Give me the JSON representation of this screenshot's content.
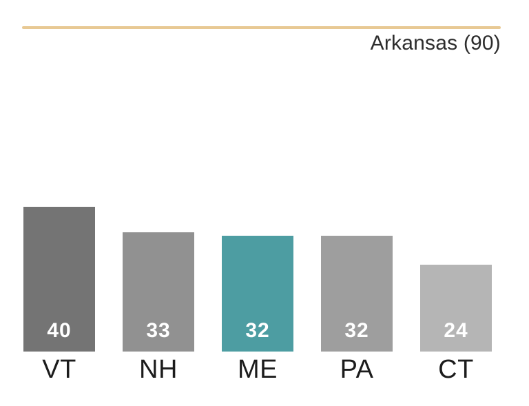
{
  "header": {
    "title": "Arkansas (90)"
  },
  "chart_data": {
    "type": "bar",
    "title": "Arkansas (90)",
    "categories": [
      "VT",
      "NH",
      "ME",
      "PA",
      "CT"
    ],
    "values": [
      40,
      33,
      32,
      32,
      24
    ],
    "bar_colors": [
      "#747474",
      "#919191",
      "#4d9da2",
      "#9e9e9e",
      "#b5b5b5"
    ],
    "highlight_index": 2,
    "highlight_color": "#4d9da2",
    "value_label_color": "#ffffff",
    "accent_rule_color": "#e8c994",
    "xlabel": "",
    "ylabel": "",
    "ylim": [
      0,
      40
    ],
    "grid": false,
    "axes_hidden": true,
    "legend_position": "none",
    "value_labels": "inside-bottom",
    "title_position": "top-right"
  }
}
